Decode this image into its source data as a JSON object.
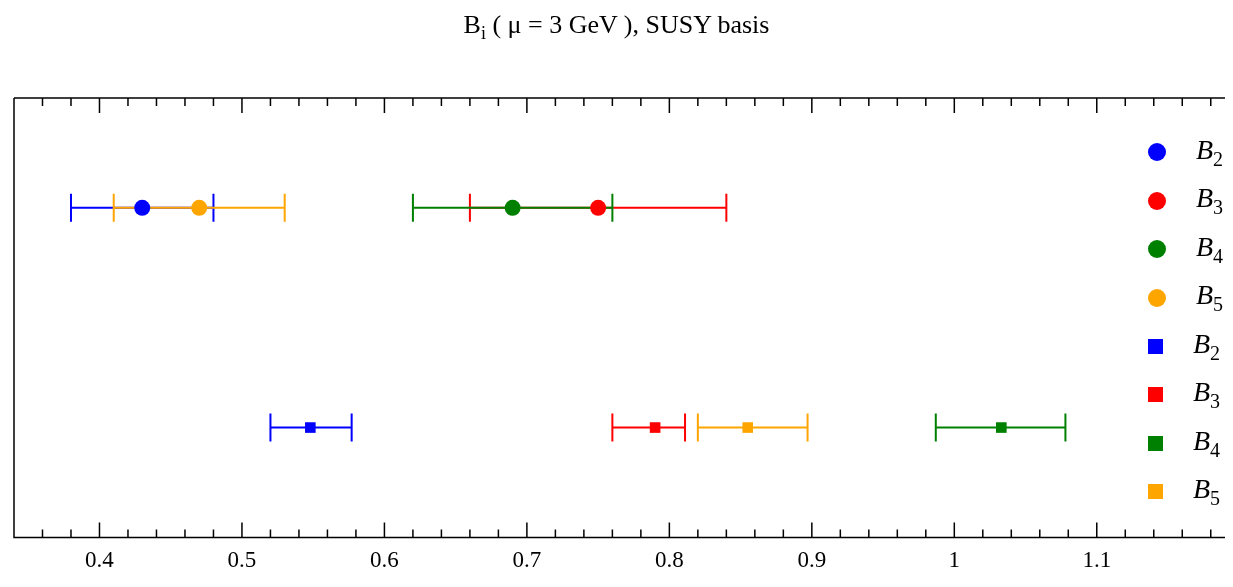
{
  "chart_data": {
    "type": "scatter",
    "title": "B$_{i}$ ( μ = 3 GeV ), SUSY basis",
    "orientation": "horizontal",
    "categories": [
      null,
      null
    ],
    "tick_labels": "x",
    "legend": "right",
    "grid": false,
    "xlim": [
      0.34,
      1.19
    ],
    "xticks": [
      {
        "value": 0.36,
        "label": null
      },
      {
        "value": 0.38,
        "label": null
      },
      0.4,
      {
        "value": 0.42,
        "label": null
      },
      {
        "value": 0.44,
        "label": null
      },
      {
        "value": 0.46,
        "label": null
      },
      {
        "value": 0.48,
        "label": null
      },
      0.5,
      {
        "value": 0.52,
        "label": null
      },
      {
        "value": 0.54,
        "label": null
      },
      {
        "value": 0.56,
        "label": null
      },
      {
        "value": 0.58,
        "label": null
      },
      0.6,
      {
        "value": 0.62,
        "label": null
      },
      {
        "value": 0.64,
        "label": null
      },
      {
        "value": 0.66,
        "label": null
      },
      {
        "value": 0.68,
        "label": null
      },
      0.7,
      {
        "value": 0.72,
        "label": null
      },
      {
        "value": 0.74,
        "label": null
      },
      {
        "value": 0.76,
        "label": null
      },
      {
        "value": 0.78,
        "label": null
      },
      0.8,
      {
        "value": 0.82,
        "label": null
      },
      {
        "value": 0.84,
        "label": null
      },
      {
        "value": 0.86,
        "label": null
      },
      {
        "value": 0.88,
        "label": null
      },
      0.9,
      {
        "value": 0.92,
        "label": null
      },
      {
        "value": 0.94,
        "label": null
      },
      {
        "value": 0.96,
        "label": null
      },
      {
        "value": 0.98,
        "label": null
      },
      {
        "value": 1.0,
        "label": "1"
      },
      {
        "value": 1.02,
        "label": null
      },
      {
        "value": 1.04,
        "label": null
      },
      {
        "value": 1.06,
        "label": null
      },
      {
        "value": 1.08,
        "label": null
      },
      1.1,
      {
        "value": 1.12,
        "label": null
      },
      {
        "value": 1.14,
        "label": null
      },
      {
        "value": 1.16,
        "label": null
      },
      {
        "value": 1.18,
        "label": null
      }
    ],
    "series": [
      {
        "name": "B$_{2}$",
        "color": "#0000ff",
        "marker": "circle",
        "values": [
          0.43,
          null
        ],
        "errors": [
          [
            0.38,
            0.48
          ],
          null
        ]
      },
      {
        "name": "B$_{3}$",
        "color": "#ff0000",
        "marker": "circle",
        "values": [
          0.75,
          null
        ],
        "errors": [
          [
            0.66,
            0.84
          ],
          null
        ]
      },
      {
        "name": "B$_{4}$",
        "color": "#008000",
        "marker": "circle",
        "values": [
          0.69,
          null
        ],
        "errors": [
          [
            0.62,
            0.76
          ],
          null
        ]
      },
      {
        "name": "B$_{5}$",
        "color": "#ffa500",
        "marker": "circle",
        "values": [
          0.47,
          null
        ],
        "errors": [
          [
            0.41,
            0.53
          ],
          null
        ]
      },
      {
        "name": "B$_{2}$",
        "color": "#0000ff",
        "marker": "square",
        "values": [
          null,
          0.548
        ],
        "errors": [
          null,
          [
            0.52,
            0.577
          ]
        ]
      },
      {
        "name": "B$_{3}$",
        "color": "#ff0000",
        "marker": "square",
        "values": [
          null,
          0.79
        ],
        "errors": [
          null,
          [
            0.76,
            0.811
          ]
        ]
      },
      {
        "name": "B$_{4}$",
        "color": "#008000",
        "marker": "square",
        "values": [
          null,
          1.033
        ],
        "errors": [
          null,
          [
            0.987,
            1.078
          ]
        ]
      },
      {
        "name": "B$_{5}$",
        "color": "#ffa500",
        "marker": "square",
        "values": [
          null,
          0.855
        ],
        "errors": [
          null,
          [
            0.82,
            0.897
          ]
        ]
      }
    ]
  }
}
